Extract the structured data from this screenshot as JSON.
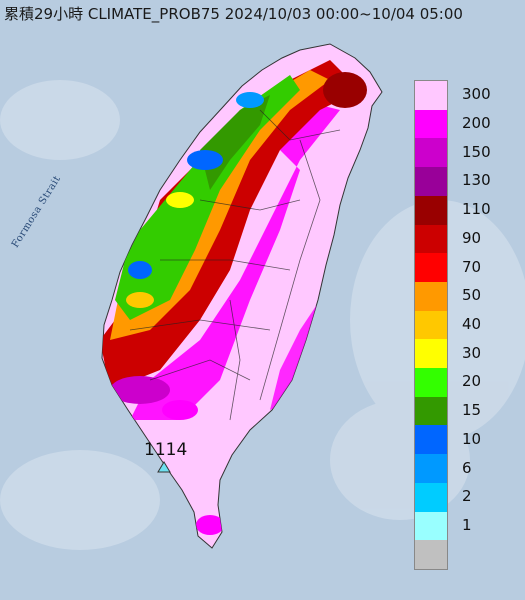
{
  "title": "累積29小時 CLIMATE_PROB75 2024/10/03 00:00~10/04 05:00",
  "map": {
    "strait_label": "Formosa Strait",
    "peak_value": "1114",
    "peak_marker": "triangle-marker"
  },
  "legend": {
    "items": [
      {
        "label": "300",
        "color": "#ffc8ff"
      },
      {
        "label": "200",
        "color": "#ff00ff"
      },
      {
        "label": "150",
        "color": "#cc00cc"
      },
      {
        "label": "130",
        "color": "#990099"
      },
      {
        "label": "110",
        "color": "#990000"
      },
      {
        "label": "90",
        "color": "#cc0000"
      },
      {
        "label": "70",
        "color": "#ff0000"
      },
      {
        "label": "50",
        "color": "#ff9900"
      },
      {
        "label": "40",
        "color": "#ffc800"
      },
      {
        "label": "30",
        "color": "#ffff00"
      },
      {
        "label": "20",
        "color": "#33ff00"
      },
      {
        "label": "15",
        "color": "#339900"
      },
      {
        "label": "10",
        "color": "#0066ff"
      },
      {
        "label": "6",
        "color": "#0099ff"
      },
      {
        "label": "2",
        "color": "#00ccff"
      },
      {
        "label": "1",
        "color": "#99ffff"
      },
      {
        "label": "",
        "color": "#c0c0c0"
      }
    ]
  }
}
